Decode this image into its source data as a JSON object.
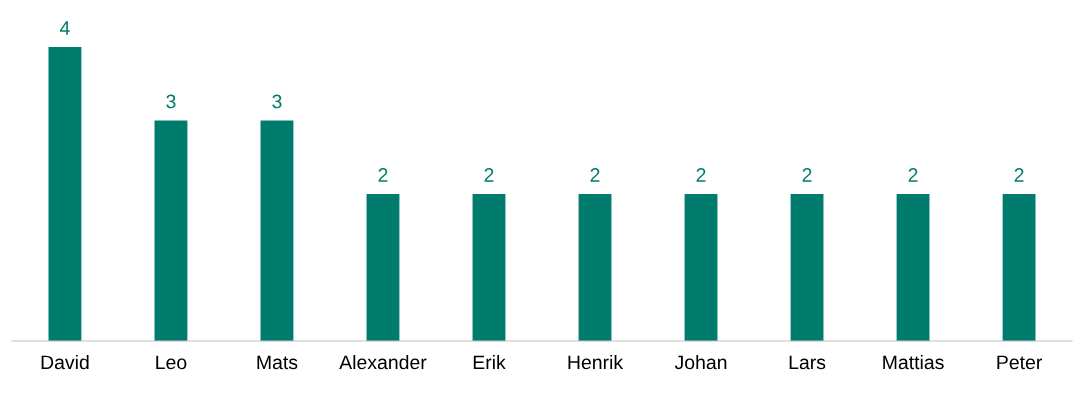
{
  "chart_data": {
    "type": "bar",
    "categories": [
      "David",
      "Leo",
      "Mats",
      "Alexander",
      "Erik",
      "Henrik",
      "Johan",
      "Lars",
      "Mattias",
      "Peter"
    ],
    "values": [
      4,
      3,
      3,
      2,
      2,
      2,
      2,
      2,
      2,
      2
    ],
    "color": "#007c6e",
    "data_labels": true,
    "grid": false,
    "legend": false
  }
}
